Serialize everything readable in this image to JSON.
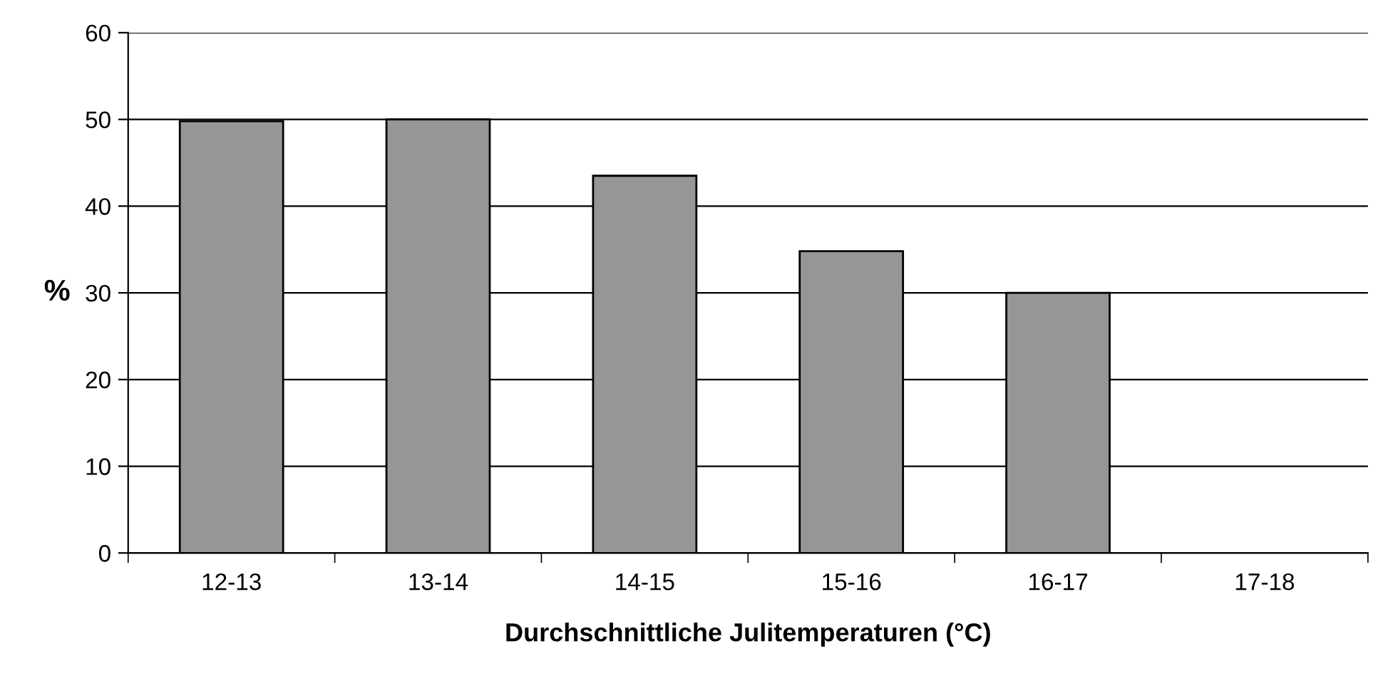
{
  "chart_data": {
    "type": "bar",
    "xlabel": "Durchschnittliche Julitemperaturen (°C)",
    "ylabel": "%",
    "categories": [
      "12-13",
      "13-14",
      "14-15",
      "15-16",
      "16-17",
      "17-18"
    ],
    "values": [
      49.8,
      50,
      43.5,
      34.8,
      30,
      null
    ],
    "color": "#969696",
    "ylim": [
      0,
      60
    ],
    "yticks": [
      0,
      10,
      20,
      30,
      40,
      50,
      60
    ],
    "grid": "y"
  }
}
